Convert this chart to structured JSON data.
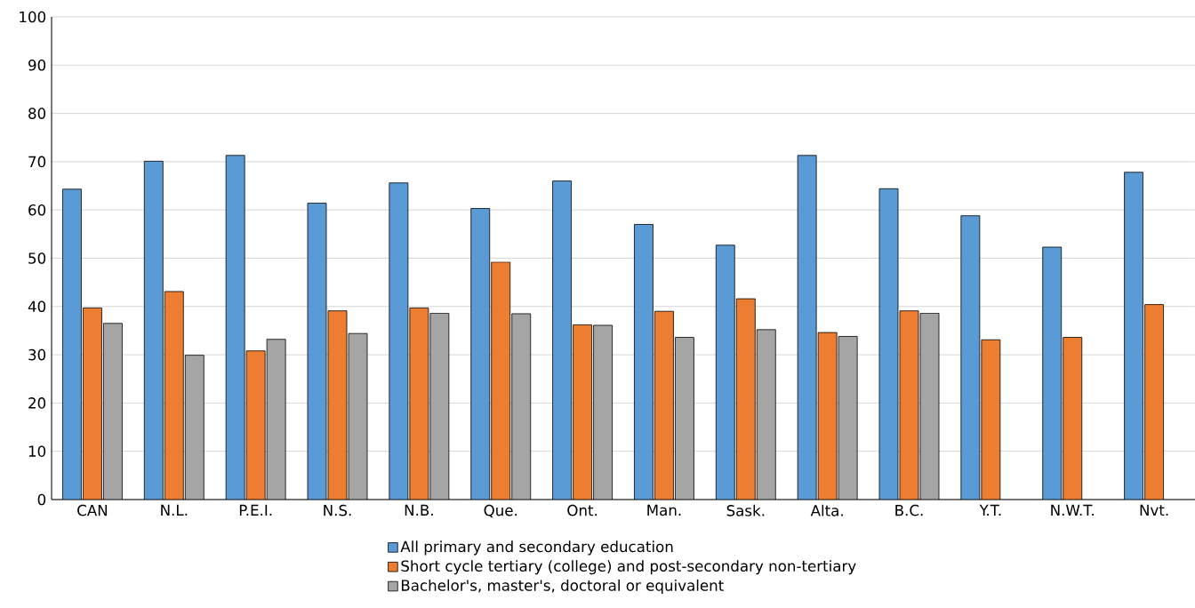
{
  "chart_data": {
    "type": "bar",
    "categories": [
      "CAN",
      "N.L.",
      "P.E.I.",
      "N.S.",
      "N.B.",
      "Que.",
      "Ont.",
      "Man.",
      "Sask.",
      "Alta.",
      "B.C.",
      "Y.T.",
      "N.W.T.",
      "Nvt."
    ],
    "series": [
      {
        "name": "All primary and secondary education",
        "color": "#5b9bd5",
        "values": [
          64.3,
          70.1,
          71.3,
          61.4,
          65.6,
          60.3,
          66.0,
          57.0,
          52.7,
          71.3,
          64.4,
          58.8,
          52.3,
          67.8
        ]
      },
      {
        "name": "Short cycle tertiary (college) and post-secondary non-tertiary",
        "color": "#ed7d31",
        "values": [
          39.7,
          43.1,
          30.8,
          39.1,
          39.7,
          49.2,
          36.2,
          39.0,
          41.6,
          34.6,
          39.1,
          33.1,
          33.6,
          40.4
        ]
      },
      {
        "name": "Bachelor's, master's, doctoral or equivalent",
        "color": "#a5a5a5",
        "values": [
          36.5,
          29.9,
          33.2,
          34.4,
          38.6,
          38.5,
          36.1,
          33.6,
          35.2,
          33.8,
          38.6,
          null,
          null,
          null
        ]
      }
    ],
    "ylim": [
      0,
      100
    ],
    "yticks": [
      0,
      10,
      20,
      30,
      40,
      50,
      60,
      70,
      80,
      90,
      100
    ],
    "grid": "y",
    "legend": "bottom"
  }
}
